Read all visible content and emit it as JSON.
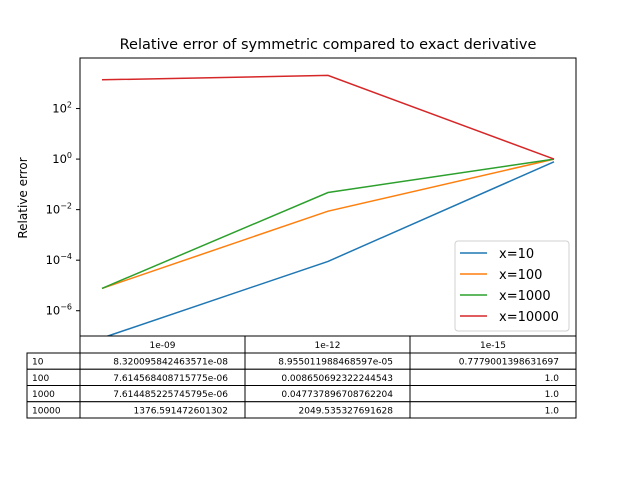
{
  "chart_data": {
    "type": "line",
    "title": "Relative error of symmetric compared to exact derivative",
    "xlabel": "",
    "ylabel": "Relative error",
    "yscale": "log",
    "ylim": [
      1e-07,
      10000
    ],
    "yticks": [
      {
        "exp": 2,
        "label": "10",
        "sup": "2"
      },
      {
        "exp": 0,
        "label": "10",
        "sup": "0"
      },
      {
        "exp": -2,
        "label": "10",
        "sup": "−2"
      },
      {
        "exp": -4,
        "label": "10",
        "sup": "−4"
      },
      {
        "exp": -6,
        "label": "10",
        "sup": "−6"
      }
    ],
    "categories": [
      "1e-09",
      "1e-12",
      "1e-15"
    ],
    "grid": false,
    "legend_position": "lower-right",
    "series": [
      {
        "name": "x=10",
        "color": "#1f77b4",
        "values": [
          8.320095842463571e-08,
          8.955011988468597e-05,
          0.7779001398631697
        ]
      },
      {
        "name": "x=100",
        "color": "#ff7f0e",
        "values": [
          7.614568408715775e-06,
          0.008650692322244543,
          1.0
        ]
      },
      {
        "name": "x=1000",
        "color": "#2ca02c",
        "values": [
          7.614485225745795e-06,
          0.047737896708762204,
          1.0
        ]
      },
      {
        "name": "x=10000",
        "color": "#d62728",
        "values": [
          1376.591472601302,
          2049.535327691628,
          1.0
        ]
      }
    ]
  },
  "table": {
    "col_headers": [
      "1e-09",
      "1e-12",
      "1e-15"
    ],
    "rows": [
      {
        "label": "10",
        "cells": [
          "8.320095842463571e-08",
          "8.955011988468597e-05",
          "0.7779001398631697"
        ]
      },
      {
        "label": "100",
        "cells": [
          "7.614568408715775e-06",
          "0.008650692322244543",
          "1.0"
        ]
      },
      {
        "label": "1000",
        "cells": [
          "7.614485225745795e-06",
          "0.047737896708762204",
          "1.0"
        ]
      },
      {
        "label": "10000",
        "cells": [
          "1376.591472601302",
          "2049.535327691628",
          "1.0"
        ]
      }
    ]
  }
}
